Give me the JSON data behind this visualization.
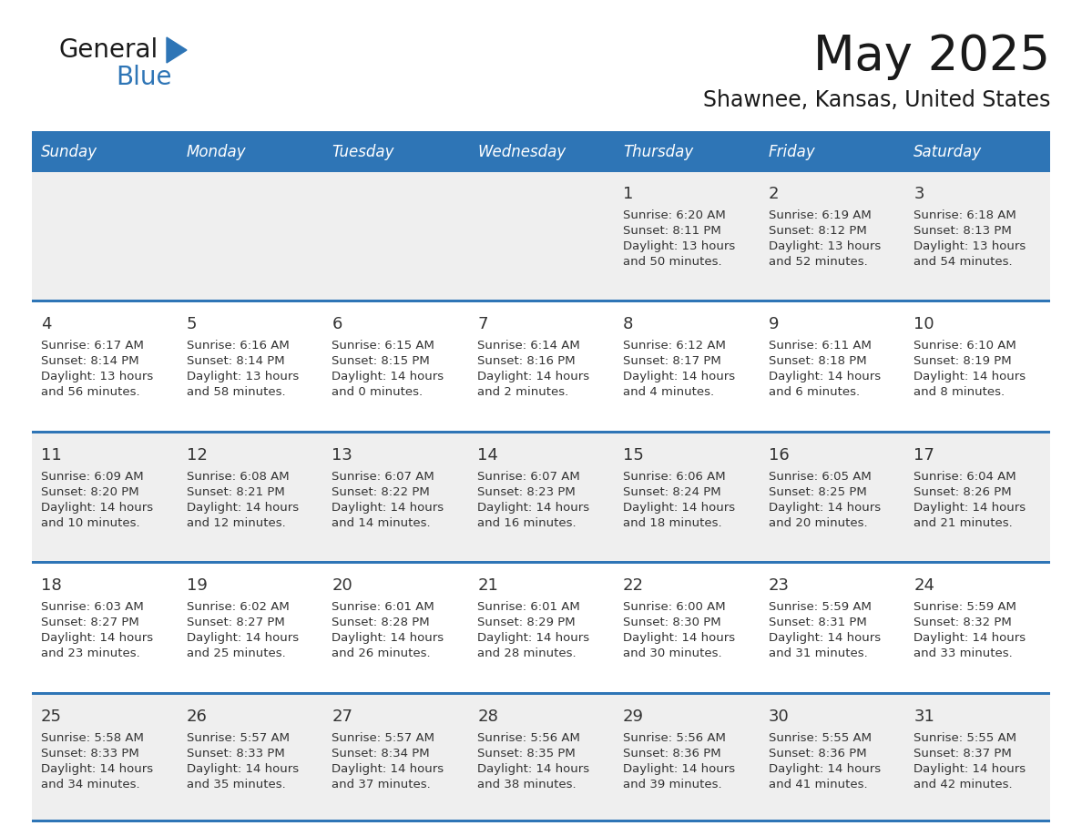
{
  "title": "May 2025",
  "subtitle": "Shawnee, Kansas, United States",
  "days_of_week": [
    "Sunday",
    "Monday",
    "Tuesday",
    "Wednesday",
    "Thursday",
    "Friday",
    "Saturday"
  ],
  "header_bg": "#2E75B6",
  "header_text_color": "#FFFFFF",
  "row_bg_odd": "#EFEFEF",
  "row_bg_even": "#FFFFFF",
  "separator_color": "#2E75B6",
  "day_number_color": "#333333",
  "cell_text_color": "#333333",
  "title_color": "#1A1A1A",
  "subtitle_color": "#1A1A1A",
  "background_color": "#FFFFFF",
  "logo_general_color": "#1A1A1A",
  "logo_blue_color": "#2E75B6",
  "logo_triangle_color": "#2E75B6",
  "calendar_data": [
    {
      "day": 1,
      "col": 4,
      "row": 0,
      "sunrise": "6:20 AM",
      "sunset": "8:11 PM",
      "daylight_line1": "Daylight: 13 hours",
      "daylight_line2": "and 50 minutes."
    },
    {
      "day": 2,
      "col": 5,
      "row": 0,
      "sunrise": "6:19 AM",
      "sunset": "8:12 PM",
      "daylight_line1": "Daylight: 13 hours",
      "daylight_line2": "and 52 minutes."
    },
    {
      "day": 3,
      "col": 6,
      "row": 0,
      "sunrise": "6:18 AM",
      "sunset": "8:13 PM",
      "daylight_line1": "Daylight: 13 hours",
      "daylight_line2": "and 54 minutes."
    },
    {
      "day": 4,
      "col": 0,
      "row": 1,
      "sunrise": "6:17 AM",
      "sunset": "8:14 PM",
      "daylight_line1": "Daylight: 13 hours",
      "daylight_line2": "and 56 minutes."
    },
    {
      "day": 5,
      "col": 1,
      "row": 1,
      "sunrise": "6:16 AM",
      "sunset": "8:14 PM",
      "daylight_line1": "Daylight: 13 hours",
      "daylight_line2": "and 58 minutes."
    },
    {
      "day": 6,
      "col": 2,
      "row": 1,
      "sunrise": "6:15 AM",
      "sunset": "8:15 PM",
      "daylight_line1": "Daylight: 14 hours",
      "daylight_line2": "and 0 minutes."
    },
    {
      "day": 7,
      "col": 3,
      "row": 1,
      "sunrise": "6:14 AM",
      "sunset": "8:16 PM",
      "daylight_line1": "Daylight: 14 hours",
      "daylight_line2": "and 2 minutes."
    },
    {
      "day": 8,
      "col": 4,
      "row": 1,
      "sunrise": "6:12 AM",
      "sunset": "8:17 PM",
      "daylight_line1": "Daylight: 14 hours",
      "daylight_line2": "and 4 minutes."
    },
    {
      "day": 9,
      "col": 5,
      "row": 1,
      "sunrise": "6:11 AM",
      "sunset": "8:18 PM",
      "daylight_line1": "Daylight: 14 hours",
      "daylight_line2": "and 6 minutes."
    },
    {
      "day": 10,
      "col": 6,
      "row": 1,
      "sunrise": "6:10 AM",
      "sunset": "8:19 PM",
      "daylight_line1": "Daylight: 14 hours",
      "daylight_line2": "and 8 minutes."
    },
    {
      "day": 11,
      "col": 0,
      "row": 2,
      "sunrise": "6:09 AM",
      "sunset": "8:20 PM",
      "daylight_line1": "Daylight: 14 hours",
      "daylight_line2": "and 10 minutes."
    },
    {
      "day": 12,
      "col": 1,
      "row": 2,
      "sunrise": "6:08 AM",
      "sunset": "8:21 PM",
      "daylight_line1": "Daylight: 14 hours",
      "daylight_line2": "and 12 minutes."
    },
    {
      "day": 13,
      "col": 2,
      "row": 2,
      "sunrise": "6:07 AM",
      "sunset": "8:22 PM",
      "daylight_line1": "Daylight: 14 hours",
      "daylight_line2": "and 14 minutes."
    },
    {
      "day": 14,
      "col": 3,
      "row": 2,
      "sunrise": "6:07 AM",
      "sunset": "8:23 PM",
      "daylight_line1": "Daylight: 14 hours",
      "daylight_line2": "and 16 minutes."
    },
    {
      "day": 15,
      "col": 4,
      "row": 2,
      "sunrise": "6:06 AM",
      "sunset": "8:24 PM",
      "daylight_line1": "Daylight: 14 hours",
      "daylight_line2": "and 18 minutes."
    },
    {
      "day": 16,
      "col": 5,
      "row": 2,
      "sunrise": "6:05 AM",
      "sunset": "8:25 PM",
      "daylight_line1": "Daylight: 14 hours",
      "daylight_line2": "and 20 minutes."
    },
    {
      "day": 17,
      "col": 6,
      "row": 2,
      "sunrise": "6:04 AM",
      "sunset": "8:26 PM",
      "daylight_line1": "Daylight: 14 hours",
      "daylight_line2": "and 21 minutes."
    },
    {
      "day": 18,
      "col": 0,
      "row": 3,
      "sunrise": "6:03 AM",
      "sunset": "8:27 PM",
      "daylight_line1": "Daylight: 14 hours",
      "daylight_line2": "and 23 minutes."
    },
    {
      "day": 19,
      "col": 1,
      "row": 3,
      "sunrise": "6:02 AM",
      "sunset": "8:27 PM",
      "daylight_line1": "Daylight: 14 hours",
      "daylight_line2": "and 25 minutes."
    },
    {
      "day": 20,
      "col": 2,
      "row": 3,
      "sunrise": "6:01 AM",
      "sunset": "8:28 PM",
      "daylight_line1": "Daylight: 14 hours",
      "daylight_line2": "and 26 minutes."
    },
    {
      "day": 21,
      "col": 3,
      "row": 3,
      "sunrise": "6:01 AM",
      "sunset": "8:29 PM",
      "daylight_line1": "Daylight: 14 hours",
      "daylight_line2": "and 28 minutes."
    },
    {
      "day": 22,
      "col": 4,
      "row": 3,
      "sunrise": "6:00 AM",
      "sunset": "8:30 PM",
      "daylight_line1": "Daylight: 14 hours",
      "daylight_line2": "and 30 minutes."
    },
    {
      "day": 23,
      "col": 5,
      "row": 3,
      "sunrise": "5:59 AM",
      "sunset": "8:31 PM",
      "daylight_line1": "Daylight: 14 hours",
      "daylight_line2": "and 31 minutes."
    },
    {
      "day": 24,
      "col": 6,
      "row": 3,
      "sunrise": "5:59 AM",
      "sunset": "8:32 PM",
      "daylight_line1": "Daylight: 14 hours",
      "daylight_line2": "and 33 minutes."
    },
    {
      "day": 25,
      "col": 0,
      "row": 4,
      "sunrise": "5:58 AM",
      "sunset": "8:33 PM",
      "daylight_line1": "Daylight: 14 hours",
      "daylight_line2": "and 34 minutes."
    },
    {
      "day": 26,
      "col": 1,
      "row": 4,
      "sunrise": "5:57 AM",
      "sunset": "8:33 PM",
      "daylight_line1": "Daylight: 14 hours",
      "daylight_line2": "and 35 minutes."
    },
    {
      "day": 27,
      "col": 2,
      "row": 4,
      "sunrise": "5:57 AM",
      "sunset": "8:34 PM",
      "daylight_line1": "Daylight: 14 hours",
      "daylight_line2": "and 37 minutes."
    },
    {
      "day": 28,
      "col": 3,
      "row": 4,
      "sunrise": "5:56 AM",
      "sunset": "8:35 PM",
      "daylight_line1": "Daylight: 14 hours",
      "daylight_line2": "and 38 minutes."
    },
    {
      "day": 29,
      "col": 4,
      "row": 4,
      "sunrise": "5:56 AM",
      "sunset": "8:36 PM",
      "daylight_line1": "Daylight: 14 hours",
      "daylight_line2": "and 39 minutes."
    },
    {
      "day": 30,
      "col": 5,
      "row": 4,
      "sunrise": "5:55 AM",
      "sunset": "8:36 PM",
      "daylight_line1": "Daylight: 14 hours",
      "daylight_line2": "and 41 minutes."
    },
    {
      "day": 31,
      "col": 6,
      "row": 4,
      "sunrise": "5:55 AM",
      "sunset": "8:37 PM",
      "daylight_line1": "Daylight: 14 hours",
      "daylight_line2": "and 42 minutes."
    }
  ]
}
